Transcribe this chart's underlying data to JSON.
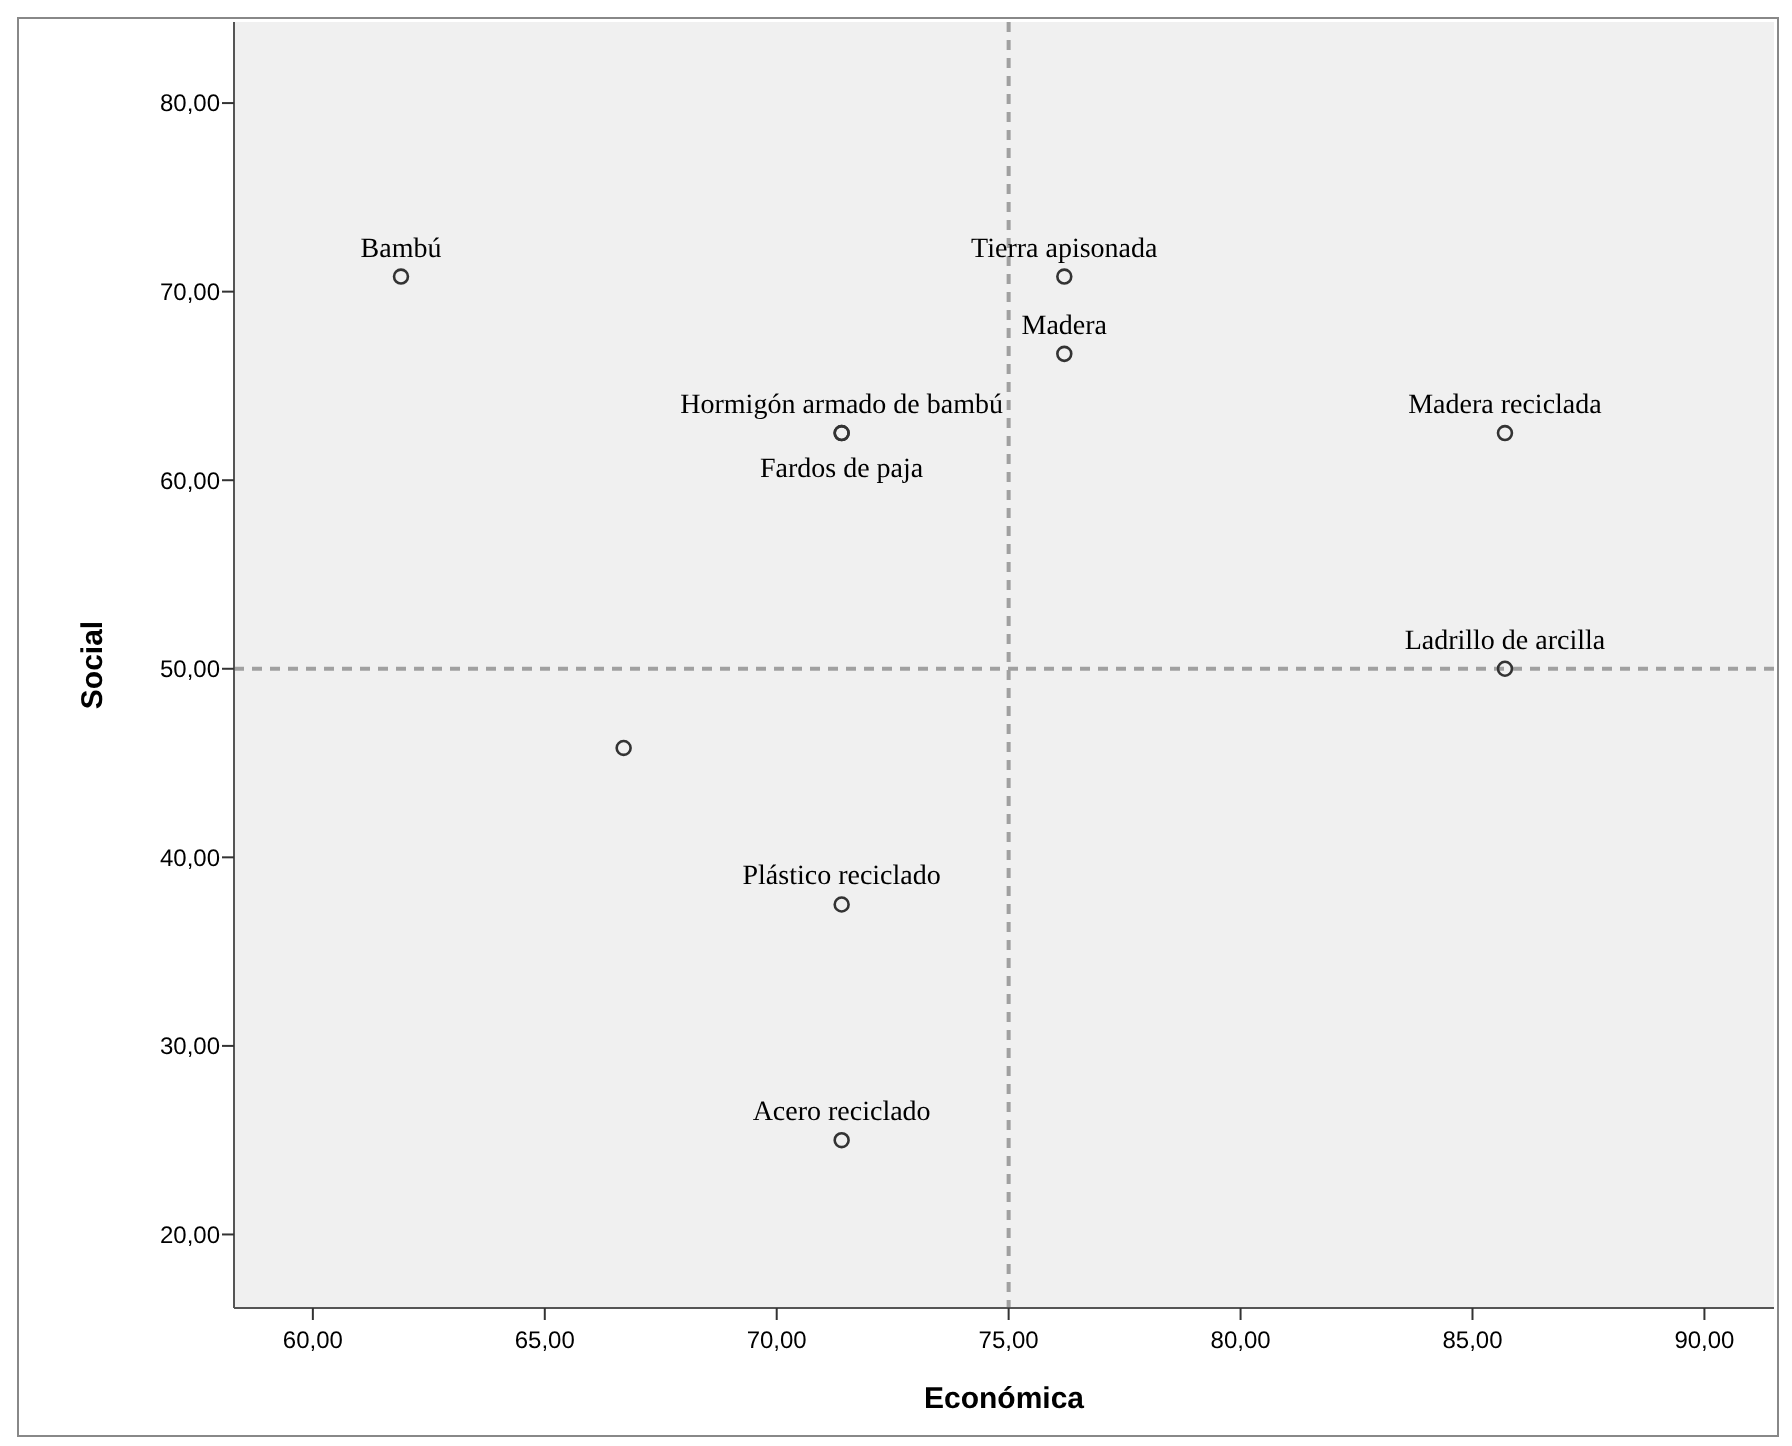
{
  "chart_data": {
    "type": "scatter",
    "xlabel": "Económica",
    "ylabel": "Social",
    "x": [
      61.9,
      76.2,
      76.2,
      71.4,
      71.4,
      85.7,
      85.7,
      66.7,
      71.4,
      71.4
    ],
    "series": [
      {
        "color": "#333333",
        "values": [
          70.8,
          70.8,
          66.7,
          62.5,
          62.5,
          62.5,
          50,
          45.8,
          37.5,
          25
        ]
      }
    ],
    "marker": "circle",
    "xlim": [
      58.3,
      91.5
    ],
    "ylim": [
      16.1,
      84.3
    ],
    "xticks": [
      {
        "value": 60,
        "label": "60,00"
      },
      {
        "value": 65,
        "label": "65,00"
      },
      {
        "value": 70,
        "label": "70,00"
      },
      {
        "value": 75,
        "label": "75,00"
      },
      {
        "value": 80,
        "label": "80,00"
      },
      {
        "value": 85,
        "label": "85,00"
      },
      {
        "value": 90,
        "label": "90,00"
      }
    ],
    "yticks": [
      {
        "value": 20,
        "label": "20,00"
      },
      {
        "value": 30,
        "label": "30,00"
      },
      {
        "value": 40,
        "label": "40,00"
      },
      {
        "value": 50,
        "label": "50,00"
      },
      {
        "value": 60,
        "label": "60,00"
      },
      {
        "value": 70,
        "label": "70,00"
      },
      {
        "value": 80,
        "label": "80,00"
      }
    ],
    "ref_lines": [
      {
        "axis": "x",
        "value": 75,
        "color": "#a0a0a0",
        "line_style": "dashed"
      },
      {
        "axis": "y",
        "value": 50,
        "color": "#a0a0a0",
        "line_style": "dashed"
      }
    ],
    "annotations": [
      {
        "text": "Bambú",
        "x": 61.9,
        "y": 70.8
      },
      {
        "text": "Tierra apisonada",
        "x": 76.2,
        "y": 70.8
      },
      {
        "text": "Madera",
        "x": 76.2,
        "y": 66.7
      },
      {
        "text": "Hormigón armado de bambú",
        "x": 71.4,
        "y": 62.5
      },
      {
        "text": "Fardos de paja",
        "x": 71.4,
        "y": 62.5
      },
      {
        "text": "Madera reciclada",
        "x": 85.7,
        "y": 62.5
      },
      {
        "text": "Ladrillo de arcilla",
        "x": 85.7,
        "y": 50
      },
      {
        "text": "Plástico reciclado",
        "x": 71.4,
        "y": 37.5
      },
      {
        "text": "Acero reciclado",
        "x": 71.4,
        "y": 25
      }
    ],
    "grid": false
  }
}
